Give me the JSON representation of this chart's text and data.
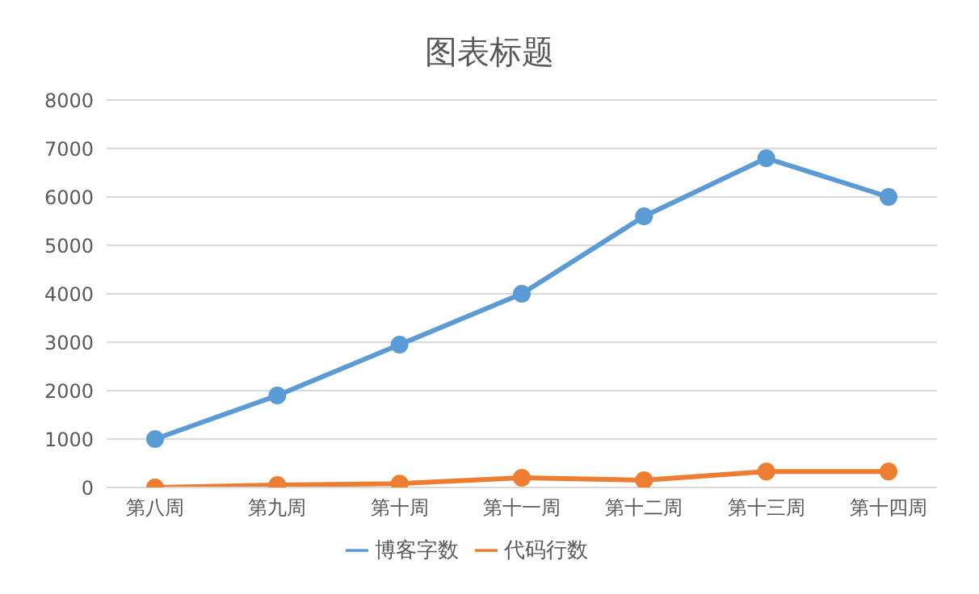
{
  "chart_data": {
    "type": "line",
    "title": "图表标题",
    "categories": [
      "第八周",
      "第九周",
      "第十周",
      "第十一周",
      "第十二周",
      "第十三周",
      "第十四周"
    ],
    "series": [
      {
        "name": "博客字数",
        "color": "#5b9bd5",
        "values": [
          1000,
          1900,
          2950,
          4000,
          5600,
          6800,
          6000
        ]
      },
      {
        "name": "代码行数",
        "color": "#ed7d31",
        "values": [
          0,
          50,
          80,
          200,
          150,
          330,
          330
        ]
      }
    ],
    "ylim": [
      0,
      8000
    ],
    "yticks": [
      0,
      1000,
      2000,
      3000,
      4000,
      5000,
      6000,
      7000,
      8000
    ],
    "grid": "y",
    "legend": "bottom",
    "marker": "circle",
    "line_style": "solid"
  }
}
